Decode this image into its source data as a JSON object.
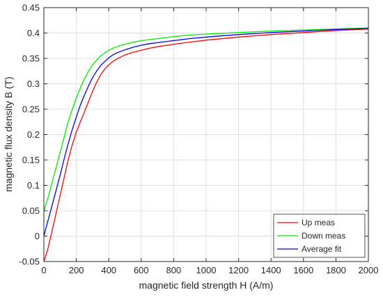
{
  "chart_data": {
    "type": "line",
    "title": "",
    "xlabel": "magnetic field strength H (A/m)",
    "ylabel": "magnetic flux density B (T)",
    "xlim": [
      0,
      2000
    ],
    "ylim": [
      -0.05,
      0.45
    ],
    "xticks": [
      0,
      200,
      400,
      600,
      800,
      1000,
      1200,
      1400,
      1600,
      1800,
      2000
    ],
    "yticks": [
      -0.05,
      0,
      0.05,
      0.1,
      0.15,
      0.2,
      0.25,
      0.3,
      0.35,
      0.4,
      0.45
    ],
    "xtick_labels": [
      "0",
      "200",
      "400",
      "600",
      "800",
      "1000",
      "1200",
      "1400",
      "1600",
      "1800",
      "2000"
    ],
    "ytick_labels": [
      "-0.05",
      "0",
      "0.05",
      "0.1",
      "0.15",
      "0.2",
      "0.25",
      "0.3",
      "0.35",
      "0.4",
      "0.45"
    ],
    "grid": true,
    "legend_position": "bottom-right",
    "series": [
      {
        "name": "Up meas",
        "color": "#ff0000",
        "x": [
          0,
          25,
          50,
          75,
          100,
          125,
          150,
          175,
          200,
          225,
          250,
          275,
          300,
          325,
          350,
          375,
          400,
          425,
          450,
          475,
          500,
          550,
          600,
          650,
          700,
          800,
          900,
          1000,
          1200,
          1400,
          1600,
          1800,
          2000
        ],
        "y": [
          -0.05,
          -0.025,
          0.01,
          0.045,
          0.08,
          0.115,
          0.15,
          0.18,
          0.205,
          0.225,
          0.245,
          0.265,
          0.285,
          0.303,
          0.318,
          0.329,
          0.337,
          0.344,
          0.349,
          0.353,
          0.357,
          0.362,
          0.366,
          0.37,
          0.373,
          0.378,
          0.382,
          0.386,
          0.392,
          0.397,
          0.401,
          0.405,
          0.408
        ]
      },
      {
        "name": "Down meas",
        "color": "#00ee00",
        "x": [
          0,
          25,
          50,
          75,
          100,
          125,
          150,
          175,
          200,
          225,
          250,
          275,
          300,
          325,
          350,
          375,
          400,
          425,
          450,
          475,
          500,
          550,
          600,
          650,
          700,
          800,
          900,
          1000,
          1200,
          1400,
          1600,
          1800,
          2000
        ],
        "y": [
          0.05,
          0.075,
          0.105,
          0.135,
          0.165,
          0.195,
          0.225,
          0.25,
          0.272,
          0.292,
          0.31,
          0.325,
          0.337,
          0.347,
          0.355,
          0.361,
          0.366,
          0.37,
          0.373,
          0.376,
          0.378,
          0.382,
          0.385,
          0.387,
          0.389,
          0.393,
          0.396,
          0.398,
          0.401,
          0.404,
          0.406,
          0.408,
          0.41
        ]
      },
      {
        "name": "Average fit",
        "color": "#0000ee",
        "x": [
          0,
          25,
          50,
          75,
          100,
          125,
          150,
          175,
          200,
          225,
          250,
          275,
          300,
          325,
          350,
          375,
          400,
          425,
          450,
          475,
          500,
          550,
          600,
          650,
          700,
          800,
          900,
          1000,
          1200,
          1400,
          1600,
          1800,
          2000
        ],
        "y": [
          0,
          0.03,
          0.06,
          0.09,
          0.12,
          0.152,
          0.182,
          0.21,
          0.235,
          0.258,
          0.278,
          0.296,
          0.312,
          0.325,
          0.336,
          0.344,
          0.351,
          0.357,
          0.361,
          0.364,
          0.367,
          0.372,
          0.376,
          0.379,
          0.381,
          0.385,
          0.389,
          0.392,
          0.397,
          0.401,
          0.404,
          0.407,
          0.409
        ]
      }
    ]
  }
}
